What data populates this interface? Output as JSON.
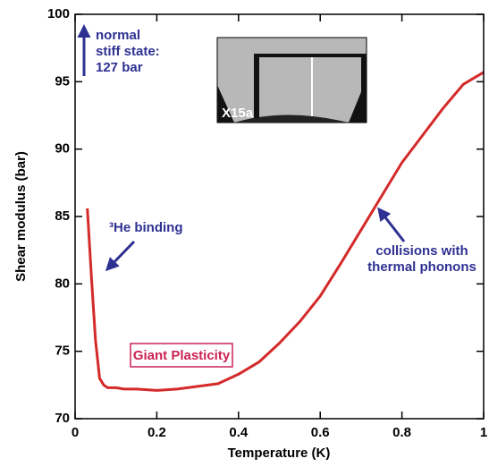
{
  "chart_data": {
    "type": "line",
    "xlabel": "Temperature (K)",
    "ylabel": "Shear modulus  (bar)",
    "xlim": [
      0,
      1
    ],
    "ylim": [
      70,
      100
    ],
    "xticks": [
      0,
      0.2,
      0.4,
      0.6,
      0.8,
      1
    ],
    "yticks": [
      70,
      75,
      80,
      85,
      90,
      95,
      100
    ],
    "x": [
      0.03,
      0.04,
      0.05,
      0.06,
      0.07,
      0.08,
      0.1,
      0.12,
      0.15,
      0.2,
      0.25,
      0.3,
      0.35,
      0.4,
      0.45,
      0.5,
      0.55,
      0.6,
      0.65,
      0.7,
      0.75,
      0.8,
      0.85,
      0.9,
      0.95,
      1.0
    ],
    "series": [
      {
        "color": "#d42a2a",
        "values": [
          85.6,
          80.5,
          75.8,
          73.0,
          72.5,
          72.3,
          72.3,
          72.2,
          72.2,
          72.1,
          72.2,
          72.4,
          72.6,
          73.3,
          74.2,
          75.6,
          77.2,
          79.1,
          81.5,
          84.0,
          86.5,
          89.0,
          91.0,
          93.0,
          94.8,
          95.7
        ]
      }
    ],
    "annotations": {
      "normal_state": [
        "normal",
        "stiff state:",
        "127 bar"
      ],
      "he_binding": "³He binding",
      "collisions": [
        "collisions with",
        "thermal phonons"
      ],
      "plasticity": "Giant Plasticity",
      "inset_label": "X15a"
    }
  }
}
